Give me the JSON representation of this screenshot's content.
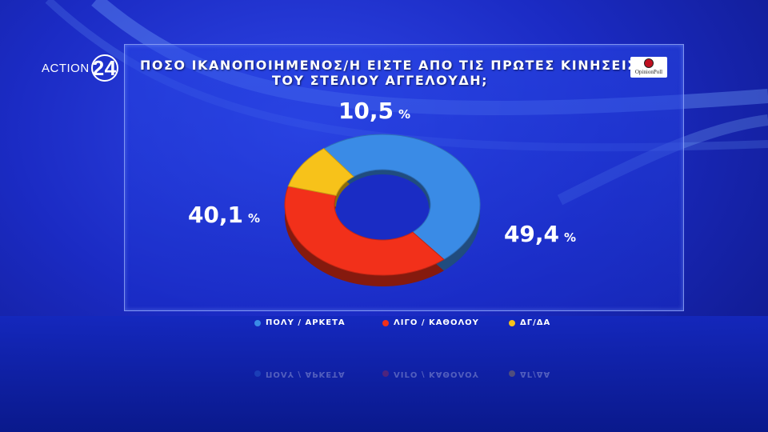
{
  "brand": {
    "channel_text": "ACTION",
    "channel_number": "24",
    "pollster": "OpinionPoll"
  },
  "chart_data": {
    "type": "pie",
    "title_lines": [
      "ΠΟΣΟ ΙΚΑΝΟΠΟΙΗΜΕΝΟΣ/Η ΕΙΣΤΕ ΑΠΟ ΤΙΣ ΠΡΩΤΕΣ ΚΙΝΗΣΕΙΣ",
      "ΤΟΥ ΣΤΕΛΙΟΥ ΑΓΓΕΛΟΥΔΗ;"
    ],
    "slices": [
      {
        "label": "ΠΟΛΥ / ΑΡΚΕΤΑ",
        "value": 49.4,
        "value_text": "49,4",
        "color": "#3a8be6"
      },
      {
        "label": "ΛΙΓΟ / ΚΑΘΟΛΟΥ",
        "value": 40.1,
        "value_text": "40,1",
        "color": "#f2301a"
      },
      {
        "label": "ΔΓ/ΔΑ",
        "value": 10.5,
        "value_text": "10,5",
        "color": "#f7c21a"
      }
    ],
    "unit": "%",
    "legend_position": "bottom",
    "donut": true
  }
}
